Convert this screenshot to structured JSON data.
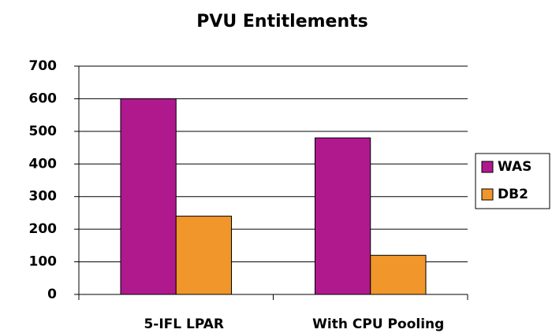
{
  "chart_data": {
    "type": "bar",
    "title": "PVU Entitlements",
    "categories": [
      "5-IFL LPAR",
      "With CPU Pooling"
    ],
    "series": [
      {
        "name": "WAS",
        "color": "#b0198e",
        "values": [
          600,
          480
        ]
      },
      {
        "name": "DB2",
        "color": "#f0962a",
        "values": [
          240,
          120
        ]
      }
    ],
    "ylim": [
      0,
      700
    ],
    "yticks": [
      0,
      100,
      200,
      300,
      400,
      500,
      600,
      700
    ],
    "grid": true,
    "legend": "right"
  }
}
